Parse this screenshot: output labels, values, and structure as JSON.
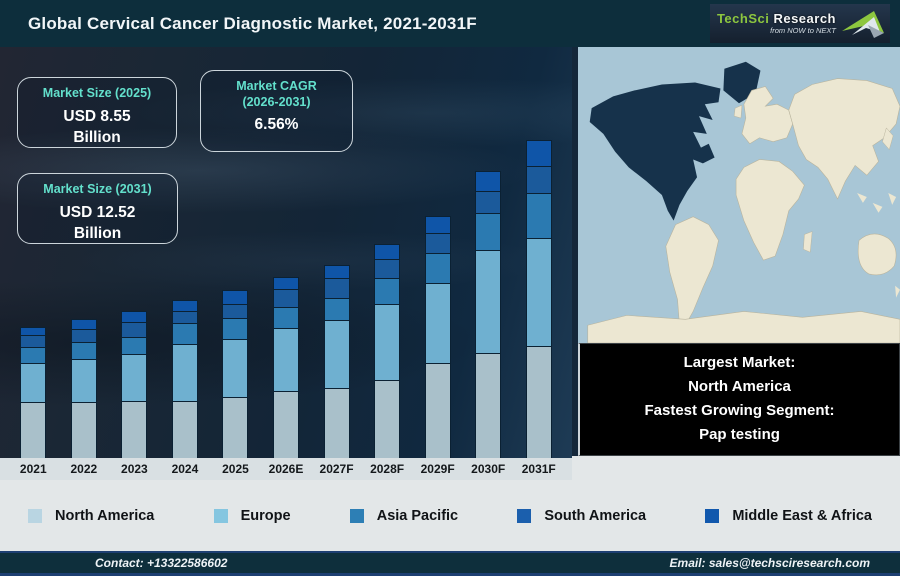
{
  "header": {
    "title": "Global Cervical Cancer Diagnostic Market, 2021-2031F",
    "logo": {
      "part1": "TechSci",
      "part2": "Research",
      "tagline": "from NOW to NEXT"
    }
  },
  "info_boxes": {
    "size_2025": {
      "label": "Market Size (2025)",
      "value": "USD 8.55",
      "unit": "Billion"
    },
    "cagr": {
      "label_line1": "Market CAGR",
      "label_line2": "(2026-2031)",
      "value": "6.56%"
    },
    "size_2031": {
      "label": "Market Size (2031)",
      "value": "USD 12.52",
      "unit": "Billion"
    }
  },
  "chart_data": {
    "type": "bar",
    "stacked": true,
    "title": "Global Cervical Cancer Diagnostic Market, 2021-2031F",
    "categories": [
      "2021",
      "2022",
      "2023",
      "2024",
      "2025",
      "2026E",
      "2027F",
      "2028F",
      "2029F",
      "2030F",
      "2031F"
    ],
    "value_axis": "none shown; segment values are bar heights in px as printed",
    "known_values": {
      "market_size_2025_usd_billion": 8.55,
      "market_size_2031_usd_billion": 12.52,
      "cagr_2026_2031_percent": 6.56
    },
    "series": [
      {
        "name": "North America",
        "color": "#a9c0ca",
        "legend_color": "#b9d5e2",
        "values": [
          56,
          56,
          57,
          57,
          61,
          67,
          70,
          78,
          95,
          105,
          112
        ]
      },
      {
        "name": "Europe",
        "color": "#6fb0d0",
        "legend_color": "#85c6e0",
        "values": [
          39,
          43,
          47,
          57,
          58,
          63,
          68,
          76,
          80,
          103,
          108
        ]
      },
      {
        "name": "Asia Pacific",
        "color": "#2b7ab1",
        "legend_color": "#2d7fb5",
        "values": [
          16,
          17,
          17,
          21,
          21,
          21,
          22,
          26,
          30,
          37,
          45
        ]
      },
      {
        "name": "South America",
        "color": "#1b5a9b",
        "legend_color": "#1b5fad",
        "values": [
          12,
          13,
          15,
          12,
          14,
          18,
          20,
          19,
          20,
          22,
          27
        ]
      },
      {
        "name": "Middle East & Africa",
        "color": "#0f55a8",
        "legend_color": "#1158ad",
        "values": [
          8,
          10,
          11,
          11,
          14,
          12,
          13,
          15,
          17,
          20,
          26
        ]
      }
    ],
    "legend_position": "bottom"
  },
  "map": {
    "highlight_region": "North America"
  },
  "callout": {
    "line1": "Largest Market:",
    "line2": "North America",
    "line3": "Fastest Growing Segment:",
    "line4": "Pap testing"
  },
  "footer": {
    "contact": "Contact: +13322586602",
    "email": "Email: sales@techsciresearch.com"
  },
  "theme": {
    "header_bg": "#0d2e3c",
    "footer_bg": "#0e2f3c",
    "accent_teal": "#63e0cc",
    "map_ocean": "#a8c6d6",
    "map_land": "#ece7d2",
    "map_highlight": "#16324b"
  }
}
